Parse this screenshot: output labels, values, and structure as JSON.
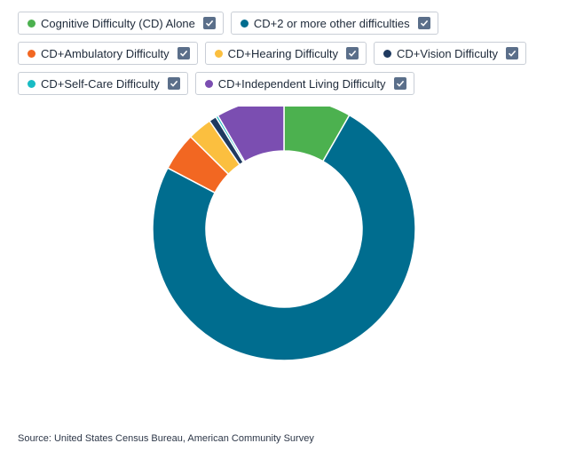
{
  "legend": {
    "rows": [
      [
        {
          "label": "Cognitive Difficulty (CD) Alone",
          "color": "#4cb14f"
        },
        {
          "label": "CD+2 or more other difficulties",
          "color": "#006d8f"
        }
      ],
      [
        {
          "label": "CD+Ambulatory Difficulty",
          "color": "#f26722"
        },
        {
          "label": "CD+Hearing Difficulty",
          "color": "#fbbf3f"
        },
        {
          "label": "CD+Vision Difficulty",
          "color": "#1f3a60"
        }
      ],
      [
        {
          "label": "CD+Self-Care Difficulty",
          "color": "#19bcc4"
        },
        {
          "label": "CD+Independent Living Difficulty",
          "color": "#7b4eb1"
        }
      ]
    ]
  },
  "chart_data": {
    "type": "pie",
    "donut": true,
    "series": [
      {
        "name": "Cognitive Difficulty (CD) Alone",
        "value": 8.3,
        "color": "#4cb14f"
      },
      {
        "name": "CD+2 or more other difficulties",
        "value": 74.4,
        "color": "#006d8f"
      },
      {
        "name": "CD+Ambulatory Difficulty",
        "value": 4.7,
        "color": "#f26722"
      },
      {
        "name": "CD+Hearing Difficulty",
        "value": 3.0,
        "color": "#fbbf3f"
      },
      {
        "name": "CD+Vision Difficulty",
        "value": 0.9,
        "color": "#1f3a60"
      },
      {
        "name": "CD+Self-Care Difficulty",
        "value": 0.3,
        "color": "#19bcc4"
      },
      {
        "name": "CD+Independent Living Difficulty",
        "value": 8.4,
        "color": "#7b4eb1"
      }
    ]
  },
  "source": "Source: United States Census Bureau, American Community Survey"
}
